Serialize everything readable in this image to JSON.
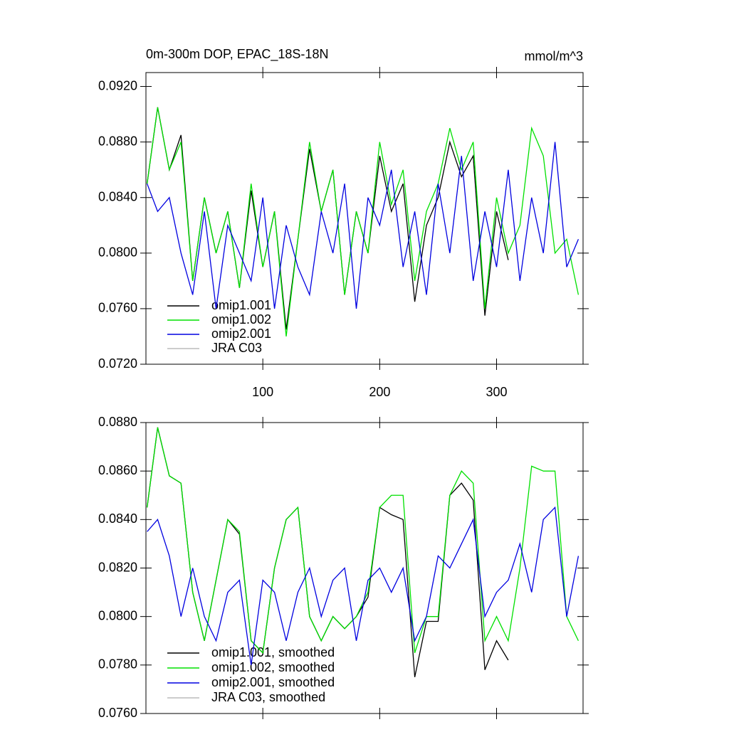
{
  "chart_data": [
    {
      "type": "line",
      "title": "0m-300m DOP, EPAC_18S-18N",
      "units": "mmol/m^3",
      "x": [
        1,
        10,
        20,
        30,
        40,
        50,
        60,
        70,
        80,
        90,
        100,
        110,
        120,
        130,
        140,
        150,
        160,
        170,
        180,
        190,
        200,
        210,
        220,
        230,
        240,
        250,
        260,
        270,
        280,
        290,
        300,
        310,
        320,
        330,
        340,
        350,
        360,
        370
      ],
      "xlim": [
        0,
        374
      ],
      "xticks": [
        100,
        200,
        300
      ],
      "ylim": [
        0.072,
        0.093
      ],
      "yticks": [
        {
          "value": 0.072,
          "label": "0.0720"
        },
        {
          "value": 0.076,
          "label": "0.0760"
        },
        {
          "value": 0.08,
          "label": "0.0800"
        },
        {
          "value": 0.084,
          "label": "0.0840"
        },
        {
          "value": 0.088,
          "label": "0.0880"
        },
        {
          "value": 0.092,
          "label": "0.0920"
        }
      ],
      "legend": "lower left",
      "series": [
        {
          "name": "omip1.001",
          "color": "#000000",
          "values": [
            0.085,
            0.0905,
            0.086,
            0.0885,
            0.078,
            0.084,
            0.08,
            0.083,
            0.0775,
            0.0845,
            0.079,
            0.083,
            0.0745,
            0.081,
            0.0875,
            0.083,
            0.086,
            0.077,
            0.083,
            0.08,
            0.087,
            0.083,
            0.085,
            0.0765,
            0.082,
            0.084,
            0.088,
            0.0855,
            0.087,
            0.0755,
            0.083,
            0.0795,
            null,
            null,
            null,
            null,
            null,
            null
          ]
        },
        {
          "name": "omip1.002",
          "color": "#00e000",
          "values": [
            0.085,
            0.0905,
            0.086,
            0.088,
            0.078,
            0.084,
            0.08,
            0.083,
            0.0775,
            0.085,
            0.079,
            0.083,
            0.074,
            0.081,
            0.088,
            0.083,
            0.086,
            0.077,
            0.083,
            0.08,
            0.088,
            0.0835,
            0.086,
            0.078,
            0.083,
            0.085,
            0.089,
            0.086,
            0.088,
            0.076,
            0.084,
            0.08,
            0.082,
            0.089,
            0.087,
            0.08,
            0.081,
            0.077
          ]
        },
        {
          "name": "omip2.001",
          "color": "#0000e0",
          "values": [
            0.085,
            0.083,
            0.084,
            0.08,
            0.077,
            0.083,
            0.076,
            0.082,
            0.08,
            0.078,
            0.084,
            0.076,
            0.082,
            0.079,
            0.077,
            0.083,
            0.08,
            0.085,
            0.076,
            0.084,
            0.082,
            0.086,
            0.079,
            0.083,
            0.077,
            0.085,
            0.08,
            0.087,
            0.078,
            0.083,
            0.079,
            0.086,
            0.078,
            0.084,
            0.08,
            0.088,
            0.079,
            0.081
          ]
        },
        {
          "name": "JRA C03",
          "color": "#bbbbbb",
          "values": [
            null,
            null,
            null,
            null,
            null,
            null,
            null,
            null,
            null,
            null,
            null,
            null,
            null,
            null,
            null,
            null,
            null,
            null,
            null,
            null,
            null,
            null,
            null,
            null,
            null,
            null,
            null,
            null,
            null,
            null,
            null,
            null,
            null,
            null,
            null,
            null,
            null,
            null
          ]
        }
      ]
    },
    {
      "type": "line",
      "x": [
        1,
        10,
        20,
        30,
        40,
        50,
        60,
        70,
        80,
        90,
        100,
        110,
        120,
        130,
        140,
        150,
        160,
        170,
        180,
        190,
        200,
        210,
        220,
        230,
        240,
        250,
        260,
        270,
        280,
        290,
        300,
        310,
        320,
        330,
        340,
        350,
        360,
        370
      ],
      "xlim": [
        0,
        374
      ],
      "xticks": [
        100,
        200,
        300
      ],
      "ylim": [
        0.076,
        0.088
      ],
      "yticks": [
        {
          "value": 0.076,
          "label": "0.0760"
        },
        {
          "value": 0.078,
          "label": "0.0780"
        },
        {
          "value": 0.08,
          "label": "0.0800"
        },
        {
          "value": 0.082,
          "label": "0.0820"
        },
        {
          "value": 0.084,
          "label": "0.0840"
        },
        {
          "value": 0.086,
          "label": "0.0860"
        },
        {
          "value": 0.088,
          "label": "0.0880"
        }
      ],
      "legend": "lower left",
      "series": [
        {
          "name": "omip1.001, smoothed",
          "color": "#000000",
          "values": [
            0.0845,
            0.0878,
            0.0858,
            0.0855,
            0.081,
            0.079,
            0.0815,
            0.084,
            0.0834,
            0.079,
            0.0785,
            0.082,
            0.084,
            0.0845,
            0.08,
            0.079,
            0.08,
            0.0795,
            0.08,
            0.0808,
            0.0845,
            0.0842,
            0.084,
            0.0775,
            0.0798,
            0.0798,
            0.085,
            0.0855,
            0.0848,
            0.0778,
            0.079,
            0.0782,
            null,
            null,
            null,
            null,
            null,
            null
          ]
        },
        {
          "name": "omip1.002, smoothed",
          "color": "#00e000",
          "values": [
            0.0845,
            0.0878,
            0.0858,
            0.0855,
            0.081,
            0.079,
            0.0815,
            0.084,
            0.0835,
            0.079,
            0.0785,
            0.082,
            0.084,
            0.0845,
            0.08,
            0.079,
            0.08,
            0.0795,
            0.08,
            0.081,
            0.0845,
            0.085,
            0.085,
            0.0785,
            0.08,
            0.08,
            0.085,
            0.086,
            0.0855,
            0.079,
            0.08,
            0.079,
            0.082,
            0.0862,
            0.086,
            0.086,
            0.08,
            0.079
          ]
        },
        {
          "name": "omip2.001, smoothed",
          "color": "#0000e0",
          "values": [
            0.0835,
            0.084,
            0.0825,
            0.08,
            0.082,
            0.08,
            0.079,
            0.081,
            0.0815,
            0.078,
            0.0815,
            0.081,
            0.079,
            0.081,
            0.082,
            0.08,
            0.0815,
            0.082,
            0.079,
            0.0815,
            0.082,
            0.081,
            0.082,
            0.079,
            0.08,
            0.0825,
            0.082,
            0.083,
            0.084,
            0.08,
            0.081,
            0.0815,
            0.083,
            0.081,
            0.084,
            0.0845,
            0.08,
            0.0825
          ]
        },
        {
          "name": "JRA C03, smoothed",
          "color": "#bbbbbb",
          "values": [
            null,
            null,
            null,
            null,
            null,
            null,
            null,
            null,
            null,
            null,
            null,
            null,
            null,
            null,
            null,
            null,
            null,
            null,
            null,
            null,
            null,
            null,
            null,
            null,
            null,
            null,
            null,
            null,
            null,
            null,
            null,
            null,
            null,
            null,
            null,
            null,
            null,
            null
          ]
        }
      ]
    }
  ]
}
